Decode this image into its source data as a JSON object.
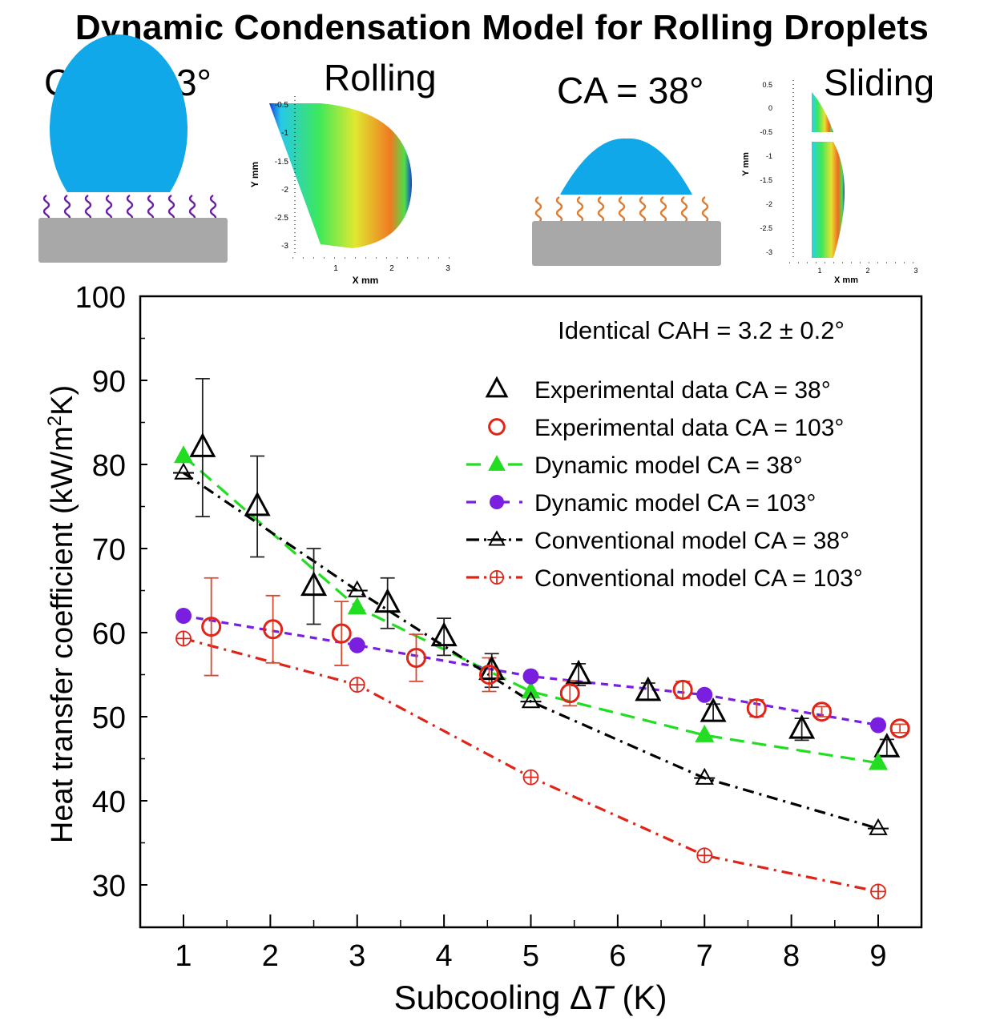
{
  "title": "Dynamic Condensation Model for Rolling Droplets",
  "panels": {
    "left": {
      "ca_label": "CA = 103°",
      "mode_label": "Rolling",
      "drop_color": "#10a8e8",
      "chain_color": "#6a1ea8",
      "substrate_color": "#a8a8a8",
      "map": {
        "y_axis_label": "Y mm",
        "x_axis_label": "X mm",
        "y_ticks": [
          "-0.5",
          "-1",
          "-1.5",
          "-2",
          "-2.5",
          "-3"
        ],
        "x_ticks": [
          "1",
          "2",
          "3"
        ]
      }
    },
    "right": {
      "ca_label": "CA = 38°",
      "mode_label": "Sliding",
      "drop_color": "#10a8e8",
      "chain_color": "#e07a2e",
      "substrate_color": "#a8a8a8",
      "map": {
        "y_axis_label": "Y mm",
        "x_axis_label": "X mm",
        "y_ticks": [
          "0.5",
          "0",
          "-0.5",
          "-1",
          "-1.5",
          "-2",
          "-2.5",
          "-3"
        ],
        "x_ticks": [
          "1",
          "2",
          "3"
        ]
      }
    }
  },
  "chart_data": {
    "type": "scatter",
    "title": "",
    "annotation": "Identical CAH = 3.2 ± 0.2°",
    "xlabel": "Subcooling ΔT (K)",
    "ylabel": "Heat transfer coefficient (kW/m²K)",
    "xlim": [
      0.5,
      9.5
    ],
    "ylim": [
      25.5,
      100
    ],
    "x_ticks": [
      1,
      2,
      3,
      4,
      5,
      6,
      7,
      8,
      9
    ],
    "y_ticks": [
      30,
      40,
      50,
      60,
      70,
      80,
      90,
      100
    ],
    "grid": false,
    "legend_position": "top-right",
    "series": [
      {
        "name": "Experimental data CA = 38°",
        "color": "#000000",
        "marker": "triangle-open",
        "line": "none",
        "points": [
          {
            "x": 1.22,
            "y": 82.0,
            "err": 8.2
          },
          {
            "x": 1.85,
            "y": 75.0,
            "err": 6.0
          },
          {
            "x": 2.5,
            "y": 65.5,
            "err": 4.5
          },
          {
            "x": 3.35,
            "y": 63.5,
            "err": 3.0
          },
          {
            "x": 4.0,
            "y": 59.5,
            "err": 2.2
          },
          {
            "x": 4.55,
            "y": 55.5,
            "err": 2.0
          },
          {
            "x": 5.55,
            "y": 55.0,
            "err": 1.3
          },
          {
            "x": 6.35,
            "y": 53.0,
            "err": 1.0
          },
          {
            "x": 7.1,
            "y": 50.5,
            "err": 1.0
          },
          {
            "x": 8.12,
            "y": 48.5,
            "err": 1.3
          },
          {
            "x": 9.1,
            "y": 46.3,
            "err": 1.0
          }
        ]
      },
      {
        "name": "Experimental data CA = 103°",
        "color": "#e02418",
        "marker": "circle-open",
        "line": "none",
        "points": [
          {
            "x": 1.32,
            "y": 60.7,
            "err": 5.8
          },
          {
            "x": 2.03,
            "y": 60.4,
            "err": 4.0
          },
          {
            "x": 2.82,
            "y": 59.9,
            "err": 3.8
          },
          {
            "x": 3.68,
            "y": 57.0,
            "err": 2.8
          },
          {
            "x": 4.52,
            "y": 55.0,
            "err": 2.0
          },
          {
            "x": 5.45,
            "y": 52.8,
            "err": 1.5
          },
          {
            "x": 6.75,
            "y": 53.2,
            "err": 1.0
          },
          {
            "x": 7.6,
            "y": 51.0,
            "err": 1.0
          },
          {
            "x": 8.35,
            "y": 50.6,
            "err": 0.6
          },
          {
            "x": 9.25,
            "y": 48.6,
            "err": 0.5
          }
        ]
      },
      {
        "name": "Dynamic model CA = 38°",
        "color": "#22dd22",
        "marker": "triangle-filled",
        "line": "dash",
        "points": [
          {
            "x": 1,
            "y": 81.0
          },
          {
            "x": 3,
            "y": 63.0
          },
          {
            "x": 5,
            "y": 53.0
          },
          {
            "x": 7,
            "y": 47.8
          },
          {
            "x": 9,
            "y": 44.5
          }
        ]
      },
      {
        "name": "Dynamic model CA = 103°",
        "color": "#7a1ee0",
        "marker": "circle-filled",
        "line": "short-dash",
        "points": [
          {
            "x": 1,
            "y": 62.0
          },
          {
            "x": 3,
            "y": 58.5
          },
          {
            "x": 5,
            "y": 54.8
          },
          {
            "x": 7,
            "y": 52.6
          },
          {
            "x": 9,
            "y": 49.0
          }
        ]
      },
      {
        "name": "Conventional model CA = 38°",
        "color": "#000000",
        "marker": "triangle-open-bar",
        "line": "dash-dot",
        "points": [
          {
            "x": 1,
            "y": 79.0
          },
          {
            "x": 3,
            "y": 65.0
          },
          {
            "x": 5,
            "y": 51.8
          },
          {
            "x": 7,
            "y": 42.7
          },
          {
            "x": 9,
            "y": 36.7
          }
        ]
      },
      {
        "name": "Conventional model CA = 103°",
        "color": "#e02418",
        "marker": "circle-plus",
        "line": "dash-dot",
        "points": [
          {
            "x": 1,
            "y": 59.3
          },
          {
            "x": 3,
            "y": 53.8
          },
          {
            "x": 5,
            "y": 42.8
          },
          {
            "x": 7,
            "y": 33.5
          },
          {
            "x": 9,
            "y": 29.2
          }
        ]
      }
    ]
  }
}
